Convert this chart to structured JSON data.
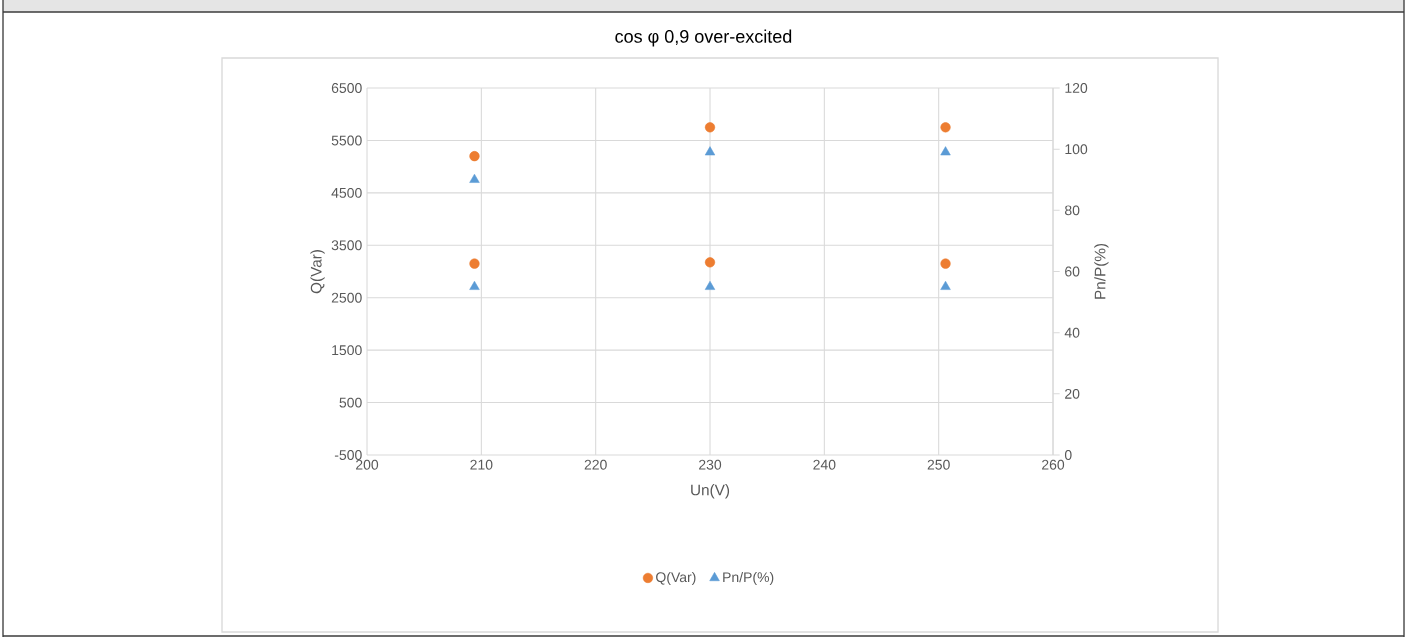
{
  "chart_data": {
    "type": "scatter",
    "title": "cos φ 0,9 over-excited",
    "xlabel": "Un(V)",
    "ylabel": "Q(Var)",
    "y2label": "Pn/P(%)",
    "xlim": [
      200,
      260
    ],
    "xticks": [
      200,
      210,
      220,
      230,
      240,
      250,
      260
    ],
    "ylim": [
      -500,
      6500
    ],
    "yticks": [
      -500,
      500,
      1500,
      2500,
      3500,
      4500,
      5500,
      6500
    ],
    "y2lim": [
      0,
      120
    ],
    "y2ticks": [
      0,
      20,
      40,
      60,
      80,
      100,
      120
    ],
    "grid": true,
    "legend": "bottom",
    "series": [
      {
        "name": "Q(Var)",
        "color": "#ed7d31",
        "marker": "circle",
        "x": [
          209.4,
          209.4,
          230,
          230,
          250.6,
          250.6
        ],
        "values": [
          5200,
          3150,
          5750,
          3175,
          5750,
          3150
        ]
      },
      {
        "name": "Pn/P(%)",
        "color": "#5b9bd5",
        "marker": "triangle",
        "axis": "y2",
        "x": [
          209.4,
          209.4,
          230,
          230,
          250.6,
          250.6
        ],
        "values": [
          90,
          55,
          99,
          55,
          99,
          55
        ]
      }
    ]
  }
}
